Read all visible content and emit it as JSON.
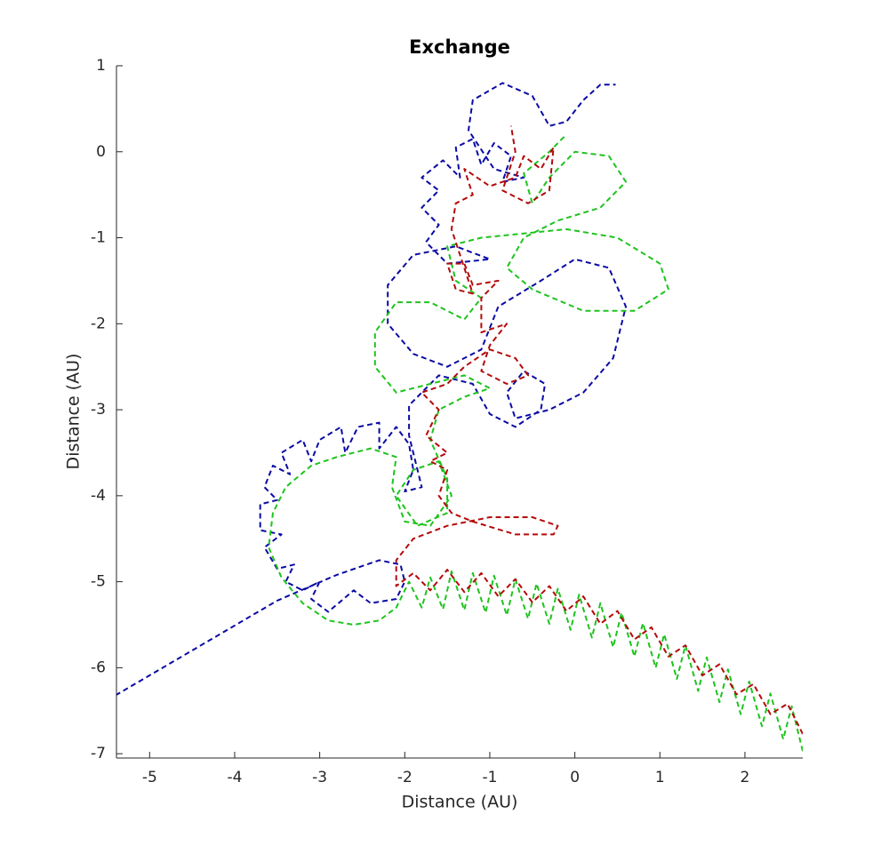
{
  "chart_data": {
    "type": "line",
    "title": "Exchange",
    "xlabel": "Distance (AU)",
    "ylabel": "Distance (AU)",
    "xlim": [
      -5.39,
      2.68
    ],
    "ylim": [
      -7.05,
      1.0
    ],
    "xticks": [
      -5,
      -4,
      -3,
      -2,
      -1,
      0,
      1,
      2
    ],
    "yticks": [
      -7,
      -6,
      -5,
      -4,
      -3,
      -2,
      -1,
      0,
      1
    ],
    "grid": false,
    "line_style": "dashed",
    "series": [
      {
        "color": "#0a0aa5",
        "x": [
          -5.4,
          -4.5,
          -3.5,
          -2.8,
          -2.3,
          -2.05,
          -2.0,
          -2.1,
          -2.4,
          -2.6,
          -2.9,
          -3.1,
          -3.0,
          -3.2,
          -3.4,
          -3.3,
          -3.5,
          -3.65,
          -3.45,
          -3.7,
          -3.7,
          -3.5,
          -3.65,
          -3.55,
          -3.35,
          -3.45,
          -3.2,
          -3.1,
          -3.0,
          -2.75,
          -2.7,
          -2.55,
          -2.3,
          -2.3,
          -2.1,
          -1.95,
          -1.9,
          -2.0,
          -1.8,
          -1.95,
          -1.95,
          -1.6,
          -1.2,
          -1.0,
          -0.7,
          -0.4,
          -0.35,
          -0.6,
          -0.8,
          -0.7,
          -0.3,
          0.1,
          0.45,
          0.6,
          0.4,
          0.0,
          -0.4,
          -0.9,
          -1.1,
          -1.5,
          -1.9,
          -2.2,
          -2.2,
          -1.9,
          -1.4,
          -1.0,
          -1.5,
          -1.75,
          -1.6,
          -1.8,
          -1.6,
          -1.8,
          -1.55,
          -1.35,
          -1.4,
          -1.2,
          -1.1,
          -0.95,
          -0.75,
          -0.85,
          -0.6,
          -0.95,
          -1.25,
          -1.2,
          -0.85,
          -0.5,
          -0.3,
          -0.1,
          0.1,
          0.3,
          0.48
        ],
        "values": [
          -6.32,
          -5.8,
          -5.22,
          -4.92,
          -4.75,
          -4.8,
          -5.0,
          -5.2,
          -5.25,
          -5.1,
          -5.35,
          -5.2,
          -5.0,
          -5.1,
          -5.0,
          -4.8,
          -4.85,
          -4.6,
          -4.45,
          -4.4,
          -4.1,
          -4.05,
          -3.9,
          -3.65,
          -3.75,
          -3.5,
          -3.35,
          -3.6,
          -3.35,
          -3.2,
          -3.5,
          -3.2,
          -3.15,
          -3.45,
          -3.2,
          -3.4,
          -3.7,
          -3.95,
          -3.9,
          -3.3,
          -2.95,
          -2.6,
          -2.7,
          -3.05,
          -3.2,
          -3.0,
          -2.7,
          -2.55,
          -2.8,
          -3.1,
          -3.0,
          -2.8,
          -2.4,
          -1.8,
          -1.35,
          -1.25,
          -1.5,
          -1.8,
          -2.3,
          -2.5,
          -2.35,
          -2.0,
          -1.55,
          -1.2,
          -1.1,
          -1.25,
          -1.3,
          -1.05,
          -0.85,
          -0.65,
          -0.45,
          -0.3,
          -0.1,
          -0.3,
          0.05,
          0.15,
          -0.15,
          0.1,
          -0.05,
          -0.35,
          -0.3,
          -0.2,
          0.25,
          0.6,
          0.8,
          0.65,
          0.3,
          0.35,
          0.6,
          0.78,
          0.78
        ]
      },
      {
        "color": "#1ec31e",
        "x": [
          2.68,
          2.55,
          2.45,
          2.3,
          2.2,
          2.05,
          1.95,
          1.8,
          1.7,
          1.55,
          1.45,
          1.3,
          1.2,
          1.05,
          0.95,
          0.8,
          0.7,
          0.55,
          0.45,
          0.3,
          0.2,
          0.05,
          -0.05,
          -0.2,
          -0.3,
          -0.45,
          -0.55,
          -0.7,
          -0.8,
          -0.95,
          -1.05,
          -1.2,
          -1.3,
          -1.45,
          -1.55,
          -1.7,
          -1.8,
          -1.95,
          -2.1,
          -2.3,
          -2.6,
          -2.9,
          -3.2,
          -3.45,
          -3.6,
          -3.55,
          -3.4,
          -3.1,
          -2.8,
          -2.4,
          -2.1,
          -2.15,
          -2.0,
          -1.7,
          -1.45,
          -1.6,
          -1.9,
          -2.1,
          -1.85,
          -1.5,
          -1.5,
          -1.7,
          -1.6,
          -1.3,
          -1.0,
          -1.3,
          -1.7,
          -2.1,
          -2.35,
          -2.35,
          -2.1,
          -1.7,
          -1.3,
          -1.1,
          -1.4,
          -1.5,
          -1.1,
          -0.6,
          -0.1,
          0.5,
          1.0,
          1.1,
          0.7,
          0.1,
          -0.5,
          -0.8,
          -0.6,
          -0.2,
          0.3,
          0.6,
          0.4,
          0.0,
          -0.3,
          -0.5,
          -0.6,
          -0.3,
          -0.1
        ],
        "values": [
          -6.97,
          -6.45,
          -6.83,
          -6.3,
          -6.68,
          -6.16,
          -6.54,
          -6.02,
          -6.4,
          -5.88,
          -6.27,
          -5.74,
          -6.13,
          -5.61,
          -6.0,
          -5.48,
          -5.87,
          -5.36,
          -5.76,
          -5.25,
          -5.65,
          -5.15,
          -5.56,
          -5.08,
          -5.49,
          -5.02,
          -5.43,
          -4.97,
          -5.39,
          -4.93,
          -5.36,
          -4.9,
          -5.33,
          -4.88,
          -5.32,
          -4.95,
          -5.3,
          -5.0,
          -5.3,
          -5.45,
          -5.5,
          -5.45,
          -5.25,
          -4.95,
          -4.6,
          -4.2,
          -3.9,
          -3.65,
          -3.55,
          -3.45,
          -3.55,
          -3.9,
          -4.3,
          -4.35,
          -4.0,
          -3.6,
          -3.7,
          -4.0,
          -4.35,
          -4.2,
          -3.8,
          -3.35,
          -3.0,
          -2.85,
          -2.75,
          -2.6,
          -2.7,
          -2.8,
          -2.5,
          -2.1,
          -1.75,
          -1.75,
          -1.95,
          -1.7,
          -1.5,
          -1.1,
          -1.0,
          -0.95,
          -0.9,
          -1.0,
          -1.3,
          -1.6,
          -1.85,
          -1.85,
          -1.6,
          -1.35,
          -1.0,
          -0.8,
          -0.65,
          -0.35,
          -0.05,
          0.0,
          -0.3,
          -0.6,
          -0.25,
          0.0,
          0.2
        ]
      },
      {
        "color": "#b40a0a",
        "x": [
          2.68,
          2.5,
          2.3,
          2.1,
          1.9,
          1.7,
          1.5,
          1.3,
          1.1,
          0.9,
          0.7,
          0.5,
          0.3,
          0.1,
          -0.1,
          -0.3,
          -0.5,
          -0.7,
          -0.9,
          -1.1,
          -1.3,
          -1.5,
          -1.7,
          -1.9,
          -2.1,
          -2.1,
          -1.9,
          -1.5,
          -1.0,
          -0.5,
          -0.2,
          -0.25,
          -0.7,
          -1.2,
          -1.45,
          -1.6,
          -1.5,
          -1.7,
          -1.5,
          -1.75,
          -1.6,
          -1.8,
          -1.5,
          -1.3,
          -1.0,
          -0.7,
          -0.55,
          -0.8,
          -1.1,
          -1.0,
          -0.8,
          -1.1,
          -1.1,
          -0.9,
          -1.2,
          -1.3,
          -1.5,
          -1.4,
          -1.2,
          -1.45,
          -1.4,
          -1.2,
          -1.3,
          -1.0,
          -0.7,
          -0.6,
          -0.4,
          -0.25,
          -0.3,
          -0.55,
          -0.85,
          -0.7,
          -0.75
        ],
        "values": [
          -6.77,
          -6.42,
          -6.54,
          -6.19,
          -6.31,
          -5.96,
          -6.09,
          -5.74,
          -5.87,
          -5.53,
          -5.67,
          -5.34,
          -5.49,
          -5.17,
          -5.34,
          -5.05,
          -5.24,
          -4.97,
          -5.17,
          -4.9,
          -5.12,
          -4.86,
          -5.1,
          -4.9,
          -5.05,
          -4.75,
          -4.5,
          -4.35,
          -4.25,
          -4.25,
          -4.35,
          -4.45,
          -4.45,
          -4.3,
          -4.2,
          -4.0,
          -3.7,
          -3.6,
          -3.5,
          -3.3,
          -3.0,
          -2.8,
          -2.7,
          -2.5,
          -2.3,
          -2.4,
          -2.6,
          -2.7,
          -2.55,
          -2.25,
          -2.0,
          -2.1,
          -1.7,
          -1.5,
          -1.55,
          -1.3,
          -1.3,
          -1.6,
          -1.65,
          -0.9,
          -0.6,
          -0.5,
          -0.2,
          -0.4,
          -0.3,
          -0.05,
          -0.2,
          0.05,
          -0.45,
          -0.6,
          -0.45,
          0.0,
          0.3
        ]
      }
    ]
  }
}
